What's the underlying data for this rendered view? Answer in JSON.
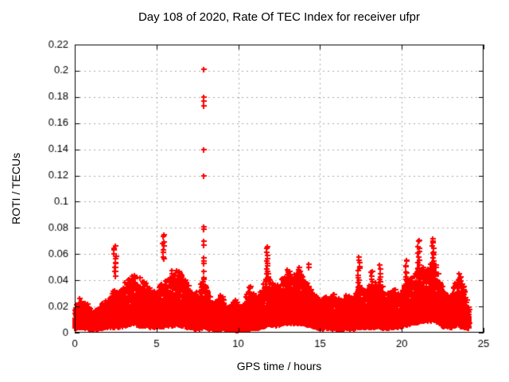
{
  "chart_data": {
    "type": "scatter",
    "title": "Day 108 of 2020, Rate Of TEC Index for receiver ufpr",
    "xlabel": "GPS time / hours",
    "ylabel": "ROTI / TECUs",
    "xlim": [
      0,
      25
    ],
    "ylim": [
      0,
      0.22
    ],
    "xticks": [
      {
        "value": 0,
        "label": "0"
      },
      {
        "value": 5,
        "label": "5"
      },
      {
        "value": 10,
        "label": "10"
      },
      {
        "value": 15,
        "label": "15"
      },
      {
        "value": 20,
        "label": "20"
      },
      {
        "value": 25,
        "label": "25"
      }
    ],
    "yticks": [
      {
        "value": 0,
        "label": "0"
      },
      {
        "value": 0.02,
        "label": "0.02"
      },
      {
        "value": 0.04,
        "label": "0.04"
      },
      {
        "value": 0.06,
        "label": "0.06"
      },
      {
        "value": 0.08,
        "label": "0.08"
      },
      {
        "value": 0.1,
        "label": "0.1"
      },
      {
        "value": 0.12,
        "label": "0.12"
      },
      {
        "value": 0.14,
        "label": "0.14"
      },
      {
        "value": 0.16,
        "label": "0.16"
      },
      {
        "value": 0.18,
        "label": "0.18"
      },
      {
        "value": 0.2,
        "label": "0.2"
      },
      {
        "value": 0.22,
        "label": "0.22"
      }
    ],
    "grid": {
      "show": true,
      "color": "#a8a8a8",
      "dash": [
        2,
        4
      ]
    },
    "axis_color": "#000000",
    "background_color": "#ffffff",
    "legend": null,
    "marker": {
      "shape": "plus",
      "color": "#ff0000",
      "size": 7,
      "stroke": 2
    },
    "series": [
      {
        "name": "ROTI",
        "outlier_points": [
          [
            7.88,
            0.201
          ],
          [
            7.9,
            0.18
          ],
          [
            7.88,
            0.177
          ],
          [
            7.9,
            0.173
          ],
          [
            7.88,
            0.14
          ],
          [
            7.9,
            0.12
          ],
          [
            7.88,
            0.081
          ],
          [
            7.9,
            0.079
          ],
          [
            7.87,
            0.07
          ],
          [
            7.9,
            0.067
          ],
          [
            7.88,
            0.057
          ],
          [
            7.86,
            0.055
          ],
          [
            7.9,
            0.053
          ],
          [
            7.88,
            0.047
          ],
          [
            7.89,
            0.042
          ],
          [
            14.3,
            0.052
          ],
          [
            14.32,
            0.05
          ]
        ],
        "spike_columns": [
          [
            2.45,
            0.044,
            0.066,
            14
          ],
          [
            5.38,
            0.056,
            0.075,
            9
          ],
          [
            11.75,
            0.03,
            0.066,
            18
          ],
          [
            13.05,
            0.034,
            0.048,
            12
          ],
          [
            13.7,
            0.034,
            0.05,
            10
          ],
          [
            17.35,
            0.026,
            0.057,
            16
          ],
          [
            18.15,
            0.028,
            0.048,
            10
          ],
          [
            18.65,
            0.028,
            0.051,
            10
          ],
          [
            20.25,
            0.032,
            0.056,
            12
          ],
          [
            21.0,
            0.03,
            0.071,
            20
          ],
          [
            21.9,
            0.024,
            0.072,
            26
          ],
          [
            23.5,
            0.026,
            0.045,
            10
          ]
        ],
        "band_envelope": [
          [
            0.0,
            0.005,
            0.02
          ],
          [
            0.3,
            0.006,
            0.025
          ],
          [
            0.7,
            0.005,
            0.022
          ],
          [
            1.1,
            0.004,
            0.016
          ],
          [
            1.5,
            0.005,
            0.019
          ],
          [
            1.9,
            0.006,
            0.024
          ],
          [
            2.3,
            0.006,
            0.03
          ],
          [
            2.6,
            0.006,
            0.032
          ],
          [
            3.0,
            0.007,
            0.036
          ],
          [
            3.4,
            0.008,
            0.043
          ],
          [
            3.7,
            0.008,
            0.045
          ],
          [
            4.0,
            0.007,
            0.042
          ],
          [
            4.4,
            0.007,
            0.037
          ],
          [
            4.8,
            0.006,
            0.03
          ],
          [
            5.1,
            0.006,
            0.033
          ],
          [
            5.5,
            0.007,
            0.04
          ],
          [
            5.9,
            0.007,
            0.046
          ],
          [
            6.3,
            0.007,
            0.048
          ],
          [
            6.6,
            0.007,
            0.043
          ],
          [
            6.9,
            0.006,
            0.038
          ],
          [
            7.2,
            0.005,
            0.028
          ],
          [
            7.6,
            0.005,
            0.032
          ],
          [
            7.9,
            0.006,
            0.042
          ],
          [
            8.2,
            0.005,
            0.028
          ],
          [
            8.6,
            0.004,
            0.022
          ],
          [
            8.9,
            0.005,
            0.032
          ],
          [
            9.3,
            0.004,
            0.016
          ],
          [
            9.8,
            0.004,
            0.026
          ],
          [
            10.2,
            0.004,
            0.018
          ],
          [
            10.7,
            0.005,
            0.036
          ],
          [
            11.1,
            0.005,
            0.026
          ],
          [
            11.5,
            0.006,
            0.034
          ],
          [
            11.8,
            0.007,
            0.045
          ],
          [
            12.1,
            0.007,
            0.036
          ],
          [
            12.5,
            0.008,
            0.038
          ],
          [
            12.9,
            0.009,
            0.044
          ],
          [
            13.2,
            0.009,
            0.046
          ],
          [
            13.5,
            0.009,
            0.043
          ],
          [
            13.8,
            0.009,
            0.048
          ],
          [
            14.1,
            0.008,
            0.04
          ],
          [
            14.5,
            0.007,
            0.032
          ],
          [
            15.0,
            0.005,
            0.024
          ],
          [
            15.4,
            0.005,
            0.028
          ],
          [
            15.8,
            0.005,
            0.031
          ],
          [
            16.2,
            0.004,
            0.024
          ],
          [
            16.6,
            0.005,
            0.027
          ],
          [
            17.0,
            0.005,
            0.028
          ],
          [
            17.4,
            0.006,
            0.036
          ],
          [
            17.8,
            0.006,
            0.032
          ],
          [
            18.2,
            0.006,
            0.038
          ],
          [
            18.7,
            0.006,
            0.038
          ],
          [
            19.1,
            0.005,
            0.028
          ],
          [
            19.5,
            0.006,
            0.034
          ],
          [
            19.9,
            0.006,
            0.028
          ],
          [
            20.3,
            0.008,
            0.042
          ],
          [
            20.7,
            0.009,
            0.042
          ],
          [
            21.1,
            0.01,
            0.052
          ],
          [
            21.5,
            0.011,
            0.048
          ],
          [
            21.9,
            0.011,
            0.055
          ],
          [
            22.2,
            0.01,
            0.048
          ],
          [
            22.5,
            0.007,
            0.032
          ],
          [
            22.9,
            0.006,
            0.028
          ],
          [
            23.3,
            0.007,
            0.038
          ],
          [
            23.6,
            0.007,
            0.042
          ],
          [
            23.9,
            0.006,
            0.03
          ],
          [
            24.1,
            0.005,
            0.02
          ]
        ]
      }
    ]
  }
}
